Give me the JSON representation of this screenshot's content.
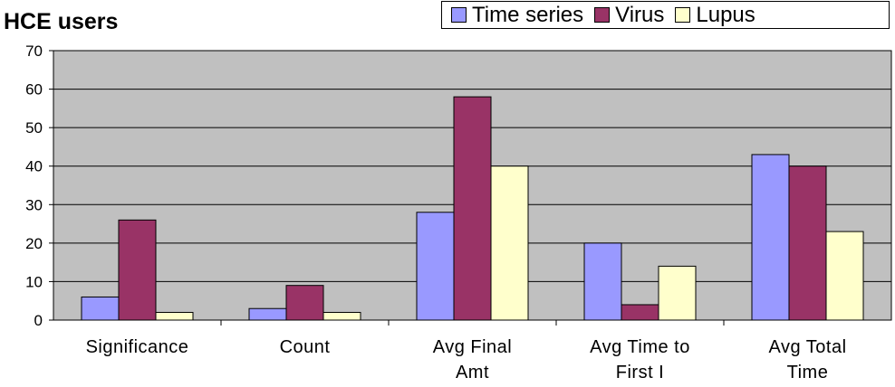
{
  "chart_data": {
    "type": "bar",
    "title": "HCE users",
    "categories": [
      [
        "Significance"
      ],
      [
        "Count"
      ],
      [
        "Avg Final",
        "Amt"
      ],
      [
        "Avg Time to",
        "First I"
      ],
      [
        "Avg Total",
        "Time"
      ]
    ],
    "series": [
      {
        "name": "Time series",
        "color": "#9999ff",
        "values": [
          6,
          3,
          28,
          20,
          43
        ]
      },
      {
        "name": "Virus",
        "color": "#993366",
        "values": [
          26,
          9,
          58,
          4,
          40
        ]
      },
      {
        "name": "Lupus",
        "color": "#ffffcc",
        "values": [
          2,
          2,
          40,
          14,
          23
        ]
      }
    ],
    "ylim": [
      0,
      70
    ],
    "yticks": [
      0,
      10,
      20,
      30,
      40,
      50,
      60,
      70
    ],
    "grid": true,
    "plot_background": "#c0c0c0",
    "legend_position": "top-right"
  }
}
